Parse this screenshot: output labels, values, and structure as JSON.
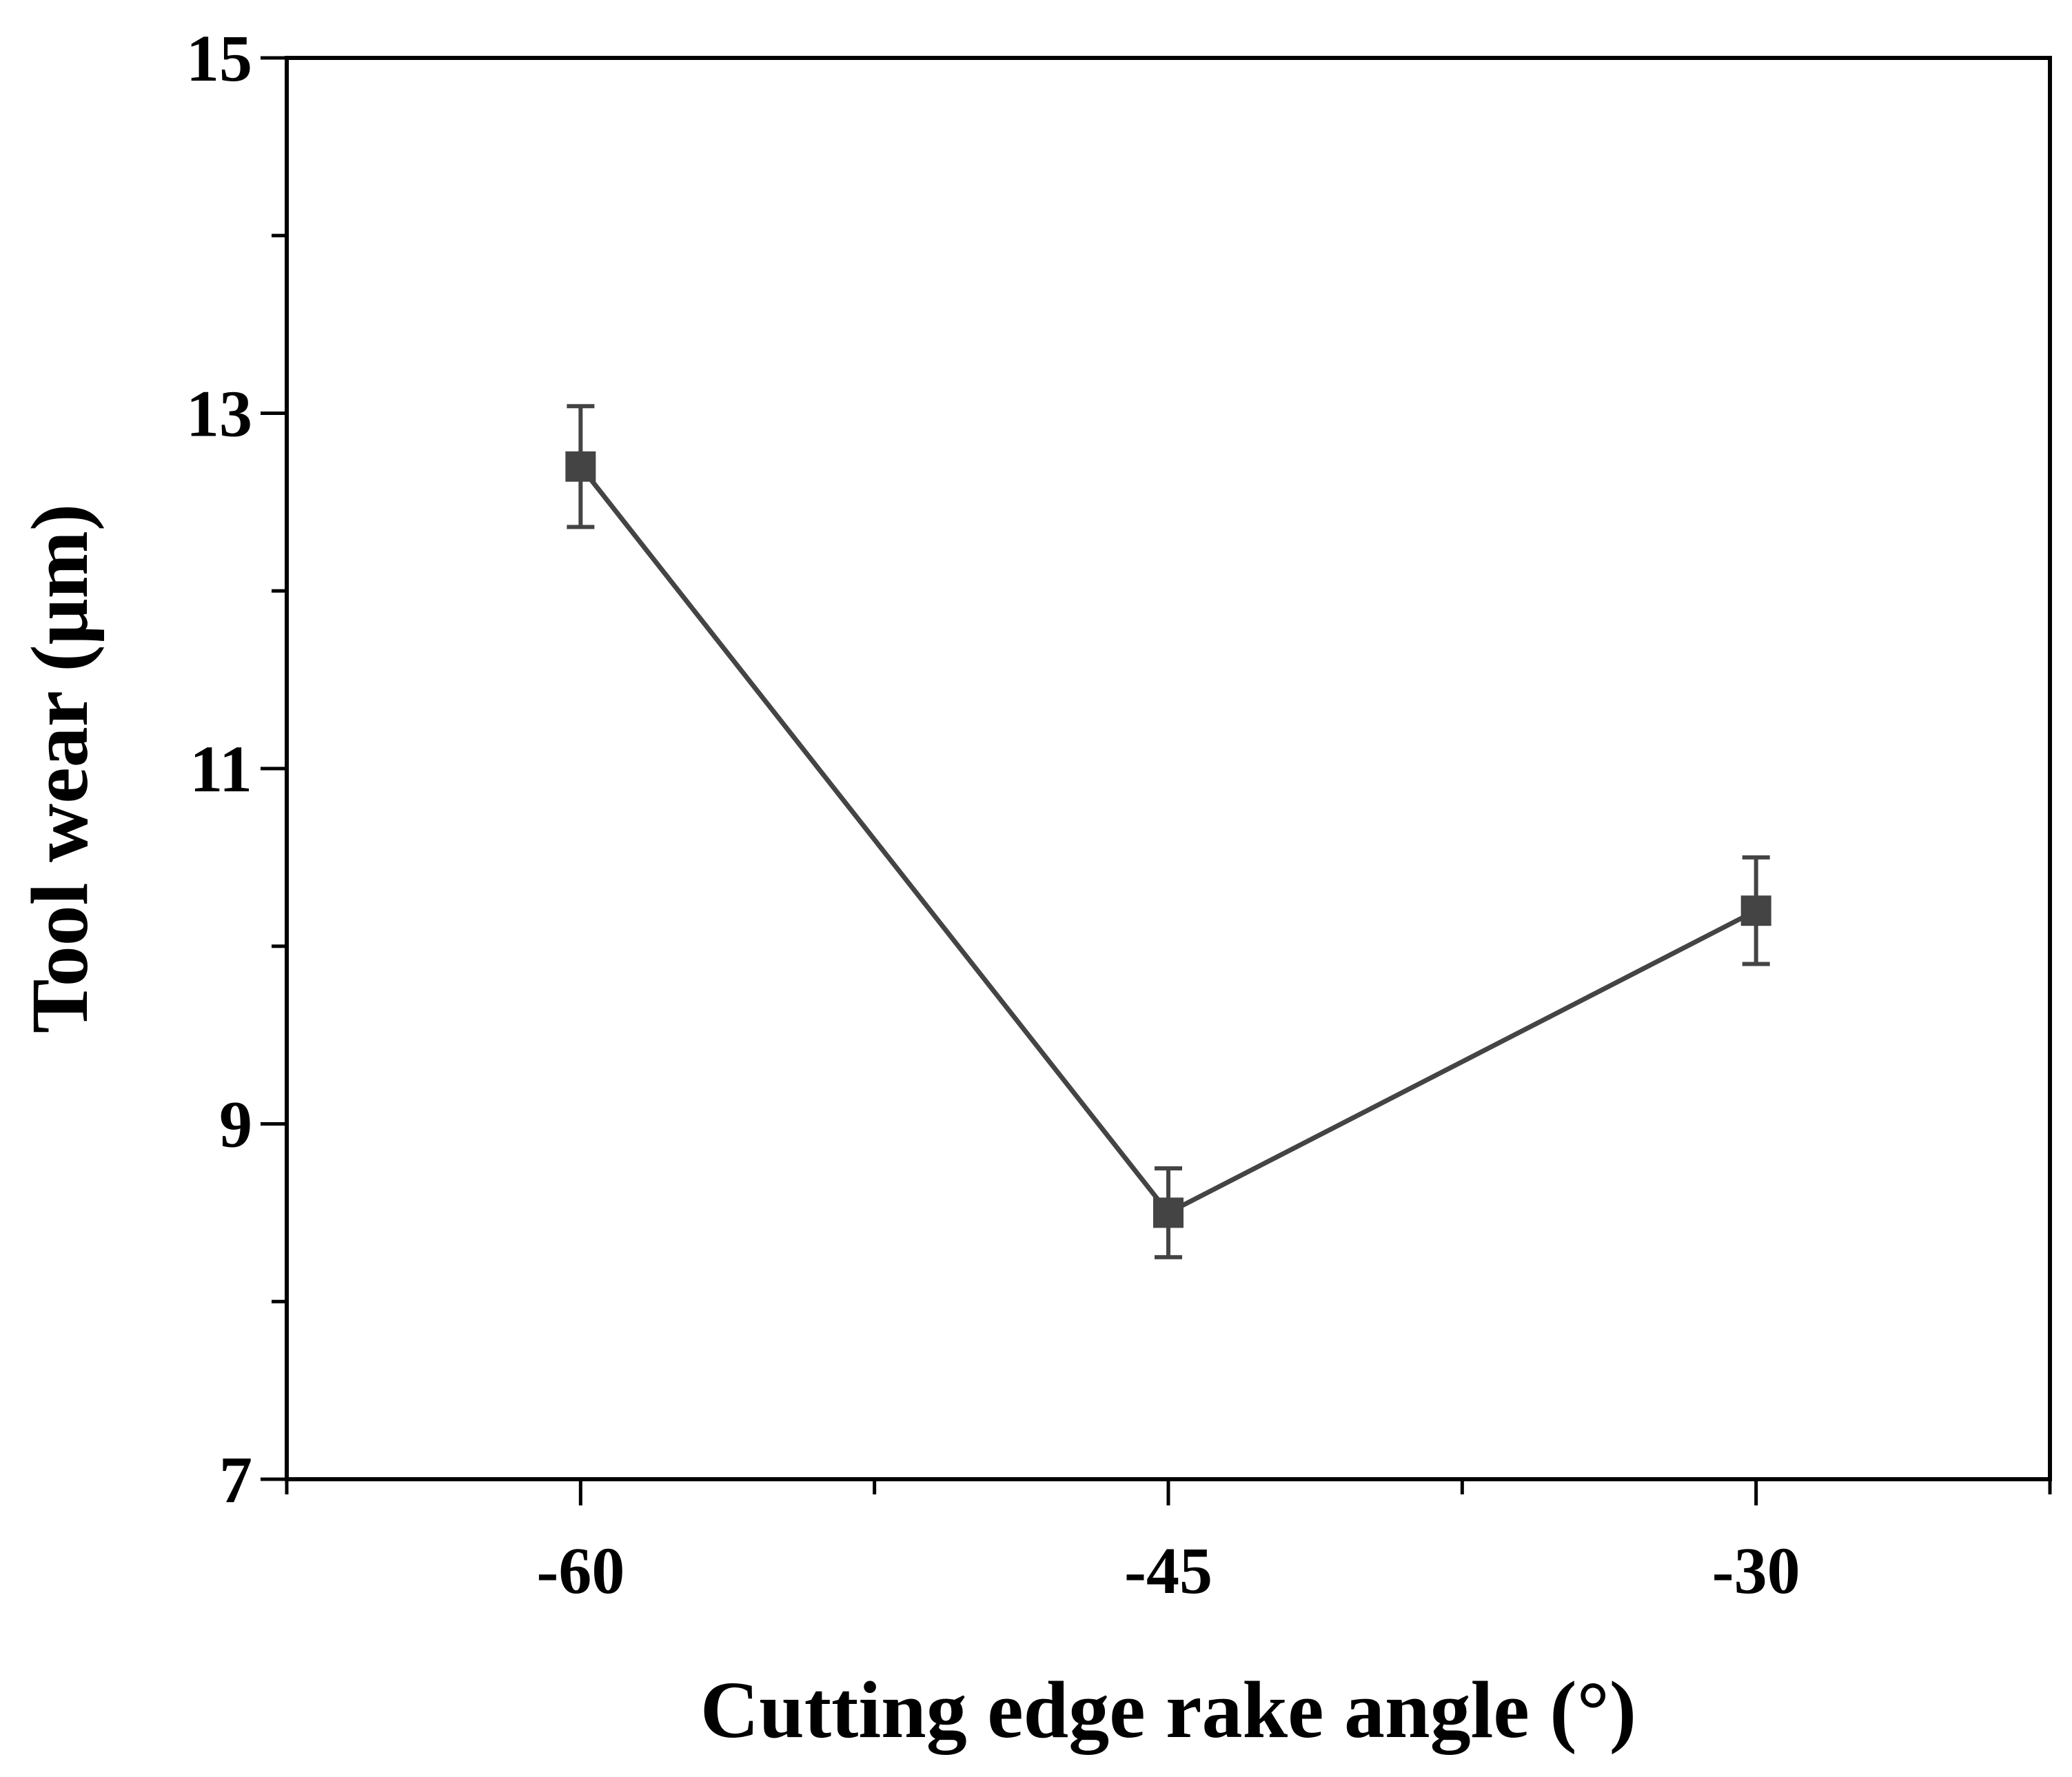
{
  "chart_data": {
    "type": "line",
    "title": "",
    "xlabel": "Cutting edge rake angle (°)",
    "ylabel": "Tool wear (μm)",
    "x": [
      -60,
      -45,
      -30
    ],
    "x_tick_labels": [
      "-60",
      "-45",
      "-30"
    ],
    "xlim": [
      -67.5,
      -22.5
    ],
    "ylim": [
      7,
      15
    ],
    "y_ticks": [
      7,
      9,
      11,
      13,
      15
    ],
    "y_tick_labels": [
      "7",
      "9",
      "11",
      "13",
      "15"
    ],
    "series": [
      {
        "values": [
          12.7,
          8.5,
          10.2
        ],
        "error": [
          0.34,
          0.25,
          0.3
        ],
        "marker": "square",
        "color": "#444444"
      }
    ],
    "grid": false,
    "legend": false
  }
}
